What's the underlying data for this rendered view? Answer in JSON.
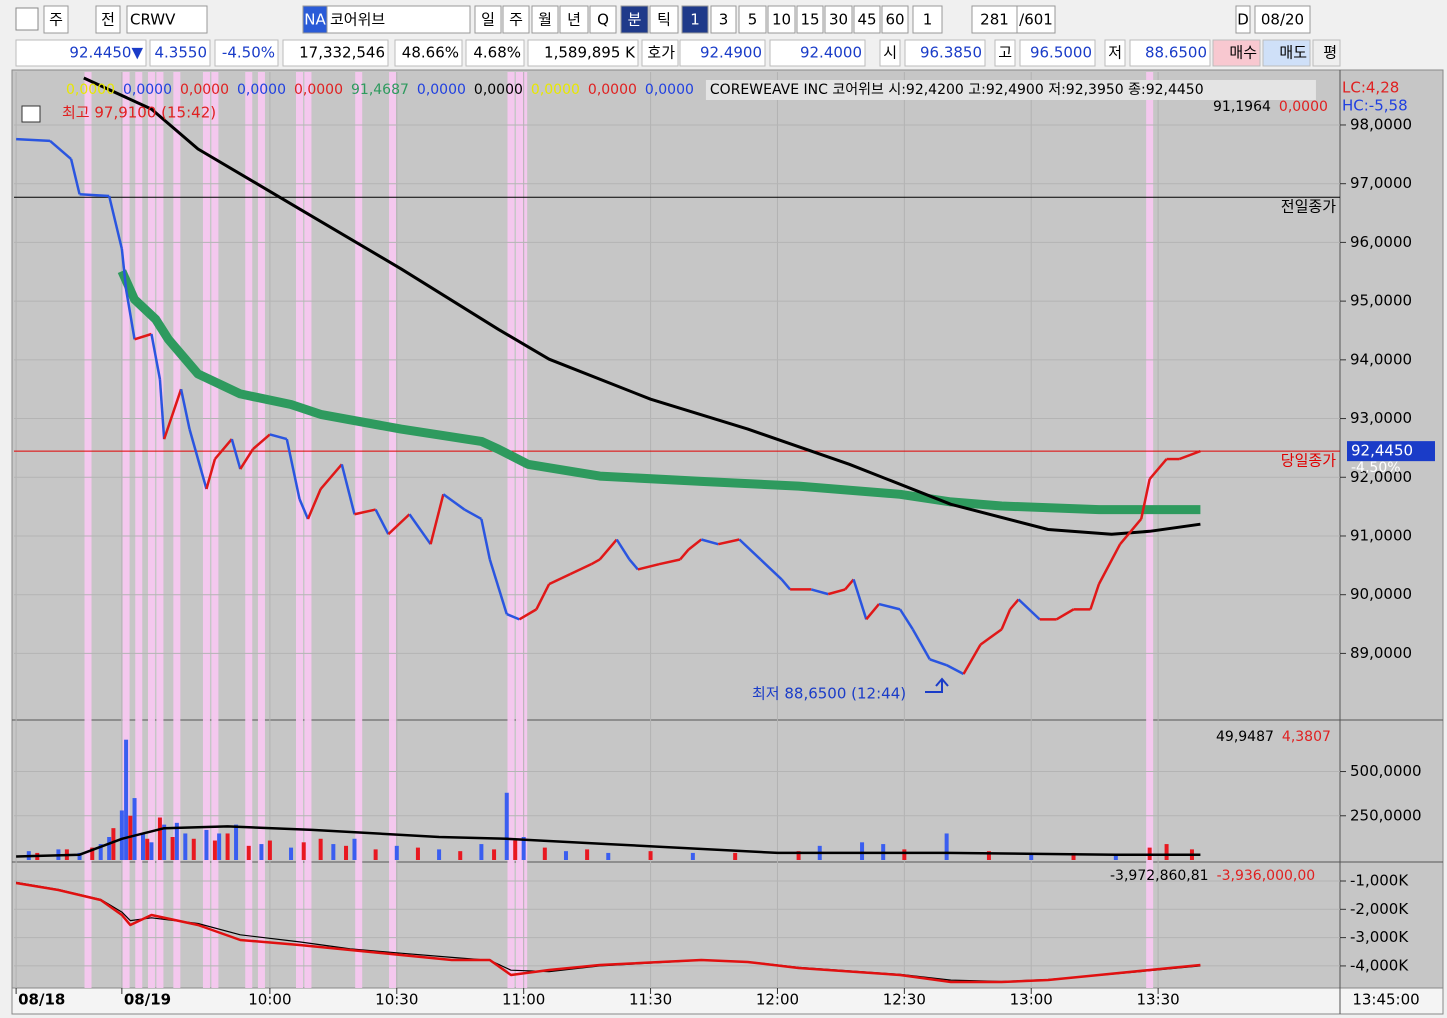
{
  "toolbar": {
    "items": [
      "주",
      "전",
      "CRWV",
      "NA",
      "코어위브",
      "일",
      "주",
      "월",
      "년",
      "Q",
      "분",
      "틱",
      "1",
      "3",
      "5",
      "10",
      "15",
      "30",
      "45",
      "60",
      "1",
      "281",
      "/601",
      "D",
      "08/20"
    ]
  },
  "quote": [
    "92.4450▼",
    "4.3550",
    "-4.50%",
    "17,332,546",
    "48.66%",
    "4.68%",
    "1,589,895 K",
    "호가",
    "92.4900",
    "92.4000",
    "시",
    "96.3850",
    "고",
    "96.5000",
    "저",
    "88.6500",
    "매수",
    "매도",
    "평"
  ],
  "chart_data": [
    {
      "type": "line",
      "legend_values": [
        {
          "text": "0,0000",
          "color": "#e8e800"
        },
        {
          "text": "0,0000",
          "color": "#2040e0"
        },
        {
          "text": "0,0000",
          "color": "#e02020"
        },
        {
          "text": "0,0000",
          "color": "#2040e0"
        },
        {
          "text": "0,0000",
          "color": "#e02020"
        },
        {
          "text": "91,4687",
          "color": "#2e9a5e"
        },
        {
          "text": "0,0000",
          "color": "#2040e0"
        },
        {
          "text": "0,0000",
          "color": "#000000"
        },
        {
          "text": "0,0000",
          "color": "#e8e800"
        },
        {
          "text": "0,0000",
          "color": "#e02020"
        },
        {
          "text": "0,0000",
          "color": "#2040e0"
        }
      ],
      "header": "COREWEAVE INC  코어위브 시:92,4200 고:92,4900 저:92,3950 종:92,4450",
      "header2": [
        {
          "text": "91,1964",
          "color": "#000000"
        },
        {
          "text": "0,0000",
          "color": "#e02020"
        }
      ],
      "lc": "LC:4,28",
      "hc": "HC:-5,58",
      "high_note": "최고 97,9100 (15:42)",
      "low_note": "최저 88,6500 (12:44)",
      "reference_lines": [
        {
          "label": "전일종가",
          "value": 96.77,
          "color": "#000000"
        },
        {
          "label": "당일종가",
          "value": 92.445,
          "color": "#e00000"
        }
      ],
      "last_label": "92,4450",
      "last_rate": "-4,50%",
      "xlim": [
        -60.5,
        253
      ],
      "ylim": [
        87.9,
        98.8
      ],
      "yticks": [
        {
          "value": 89,
          "label": "89,0000"
        },
        {
          "value": 90,
          "label": "90,0000"
        },
        {
          "value": 91,
          "label": "91,0000"
        },
        {
          "value": 92,
          "label": "92,0000"
        },
        {
          "value": 93,
          "label": "93,0000"
        },
        {
          "value": 94,
          "label": "94,0000"
        },
        {
          "value": 95,
          "label": "95,0000"
        },
        {
          "value": 96,
          "label": "96,0000"
        },
        {
          "value": 97,
          "label": "97,0000"
        },
        {
          "value": 98,
          "label": "98,0000"
        }
      ],
      "grid": true,
      "highlights": [
        -43,
        -34,
        -31,
        -28,
        -26,
        -22,
        -15,
        -13,
        -5,
        -2,
        7,
        9,
        21,
        29,
        57,
        59,
        60,
        208
      ],
      "series": [
        {
          "up_color": "#e01818",
          "down_color": "#2a55e0",
          "x": [
            -60,
            -52,
            -47,
            -45,
            -38,
            -35,
            -34,
            -32,
            -28,
            -26,
            -25,
            -21,
            -19,
            -15,
            -13,
            -9,
            -7,
            -4,
            0,
            4,
            7,
            9,
            12,
            17,
            20,
            25,
            28,
            33,
            38,
            41,
            46,
            50,
            52,
            56,
            59,
            63,
            66,
            71,
            76,
            78,
            82,
            85,
            87,
            92,
            97,
            99,
            102,
            106,
            111,
            116,
            121,
            123,
            128,
            132,
            136,
            138,
            141,
            144,
            149,
            152,
            156,
            160,
            164,
            168,
            173,
            175,
            177,
            182,
            186,
            190,
            194,
            196,
            201,
            206,
            208,
            212,
            215,
            220
          ],
          "values": [
            97.76,
            97.73,
            97.42,
            96.82,
            96.79,
            95.89,
            95.2,
            94.35,
            94.44,
            93.67,
            92.65,
            93.5,
            92.82,
            91.8,
            92.31,
            92.65,
            92.14,
            92.48,
            92.73,
            92.65,
            91.63,
            91.29,
            91.8,
            92.22,
            91.37,
            91.45,
            91.03,
            91.37,
            90.86,
            91.71,
            91.45,
            91.29,
            90.6,
            89.67,
            89.58,
            89.75,
            90.18,
            90.35,
            90.52,
            90.6,
            90.94,
            90.6,
            90.43,
            90.52,
            90.6,
            90.77,
            90.94,
            90.86,
            90.94,
            90.6,
            90.26,
            90.09,
            90.09,
            90.01,
            90.09,
            90.26,
            89.58,
            89.84,
            89.75,
            89.41,
            88.9,
            88.8,
            88.65,
            89.15,
            89.41,
            89.75,
            89.92,
            89.58,
            89.58,
            89.75,
            89.75,
            90.18,
            90.86,
            91.29,
            91.97,
            92.31,
            92.31,
            92.445
          ]
        },
        {
          "color": "#000000",
          "x": [
            -44,
            -28,
            -17,
            7,
            31,
            54,
            66,
            90,
            113,
            137,
            161,
            184,
            199,
            208,
            220
          ],
          "values": [
            98.8,
            98.27,
            97.59,
            96.57,
            95.55,
            94.52,
            94.01,
            93.33,
            92.82,
            92.22,
            91.54,
            91.11,
            91.03,
            91.08,
            91.2
          ]
        },
        {
          "color": "#2e9a5e",
          "x": [
            -35,
            -32,
            -27,
            -24,
            -17,
            -7,
            5,
            12,
            31,
            50,
            54,
            61,
            78,
            102,
            125,
            149,
            161,
            173,
            196,
            220
          ],
          "values": [
            95.51,
            95.03,
            94.69,
            94.35,
            93.76,
            93.42,
            93.24,
            93.07,
            92.82,
            92.61,
            92.48,
            92.22,
            92.02,
            91.93,
            91.85,
            91.71,
            91.58,
            91.51,
            91.45,
            91.45
          ]
        }
      ]
    },
    {
      "type": "bar",
      "header": [
        {
          "text": "49,9487",
          "color": "#000000"
        },
        {
          "text": "4,3807",
          "color": "#e02020"
        }
      ],
      "xlim": [
        -60.5,
        253
      ],
      "ylim": [
        0,
        780
      ],
      "yticks": [
        {
          "value": 250,
          "label": "250,0000"
        },
        {
          "value": 500,
          "label": "500,0000"
        }
      ],
      "series": [
        {
          "color": "#3a5ef0",
          "x": [
            -57,
            -50,
            -45,
            -40,
            -38,
            -35,
            -34,
            -32,
            -30,
            -28,
            -25,
            -22,
            -20,
            -15,
            -12,
            -8,
            -2,
            5,
            15,
            20,
            30,
            40,
            50,
            56,
            60,
            70,
            80,
            100,
            130,
            140,
            145,
            160,
            180,
            200
          ],
          "values": [
            50,
            60,
            40,
            90,
            130,
            280,
            680,
            350,
            150,
            100,
            200,
            210,
            150,
            170,
            150,
            200,
            90,
            70,
            90,
            120,
            80,
            60,
            90,
            380,
            130,
            50,
            40,
            40,
            80,
            100,
            90,
            150,
            40,
            30
          ]
        },
        {
          "color": "#e81820",
          "x": [
            -55,
            -48,
            -42,
            -37,
            -33,
            -29,
            -26,
            -23,
            -18,
            -13,
            -10,
            -5,
            0,
            8,
            12,
            18,
            25,
            35,
            45,
            53,
            58,
            65,
            75,
            90,
            110,
            125,
            150,
            170,
            190,
            208,
            212,
            218
          ],
          "values": [
            40,
            60,
            70,
            180,
            250,
            120,
            240,
            130,
            120,
            110,
            150,
            80,
            110,
            100,
            120,
            80,
            60,
            70,
            50,
            60,
            110,
            70,
            60,
            50,
            40,
            50,
            60,
            50,
            40,
            70,
            90,
            60
          ]
        },
        {
          "type": "line",
          "color": "#000000",
          "x": [
            -60,
            -45,
            -35,
            -25,
            -10,
            10,
            40,
            56,
            80,
            120,
            160,
            200,
            220
          ],
          "values": [
            20,
            30,
            120,
            180,
            190,
            170,
            130,
            120,
            90,
            40,
            40,
            30,
            30
          ]
        }
      ]
    },
    {
      "type": "line",
      "header": [
        {
          "text": "-3,972,860,81",
          "color": "#000000"
        },
        {
          "text": "-3,936,000,00",
          "color": "#e02020"
        }
      ],
      "xlim": [
        -60.5,
        253
      ],
      "ylim": [
        -4780,
        -470
      ],
      "yticks": [
        {
          "value": -1000,
          "label": "-1,000K"
        },
        {
          "value": -2000,
          "label": "-2,000K"
        },
        {
          "value": -3000,
          "label": "-3,000K"
        },
        {
          "value": -4000,
          "label": "-4,000K"
        }
      ],
      "xticks": [
        {
          "value": -60,
          "label": "08/18"
        },
        {
          "value": -35,
          "label": "08/19"
        },
        {
          "value": 0,
          "label": "10:00"
        },
        {
          "value": 30,
          "label": "10:30"
        },
        {
          "value": 60,
          "label": "11:00"
        },
        {
          "value": 90,
          "label": "11:30"
        },
        {
          "value": 120,
          "label": "12:00"
        },
        {
          "value": 150,
          "label": "12:30"
        },
        {
          "value": 180,
          "label": "13:00"
        },
        {
          "value": 210,
          "label": "13:30"
        }
      ],
      "x_end_label": "13:45:00",
      "series": [
        {
          "color": "#000000",
          "x": [
            -60,
            -50,
            -40,
            -35,
            -33,
            -28,
            -17,
            -7,
            7,
            19,
            31,
            43,
            52,
            57,
            66,
            78,
            102,
            113,
            125,
            149,
            161,
            173,
            184,
            196,
            208,
            220
          ],
          "values": [
            -1050,
            -1300,
            -1650,
            -2100,
            -2400,
            -2300,
            -2500,
            -2900,
            -3150,
            -3400,
            -3550,
            -3700,
            -3800,
            -4150,
            -4200,
            -4000,
            -3800,
            -3850,
            -4050,
            -4300,
            -4500,
            -4550,
            -4480,
            -4330,
            -4170,
            -4000
          ]
        },
        {
          "color": "#e01010",
          "x": [
            -60,
            -50,
            -40,
            -35,
            -33,
            -28,
            -17,
            -7,
            7,
            19,
            31,
            43,
            52,
            57,
            66,
            78,
            102,
            113,
            125,
            149,
            161,
            173,
            184,
            196,
            208,
            220
          ],
          "values": [
            -1071,
            -1318,
            -1671,
            -2201,
            -2555,
            -2201,
            -2555,
            -3085,
            -3261,
            -3438,
            -3615,
            -3792,
            -3792,
            -4322,
            -4145,
            -3968,
            -3792,
            -3862,
            -4074,
            -4322,
            -4569,
            -4569,
            -4498,
            -4322,
            -4145,
            -3968
          ]
        }
      ]
    }
  ]
}
